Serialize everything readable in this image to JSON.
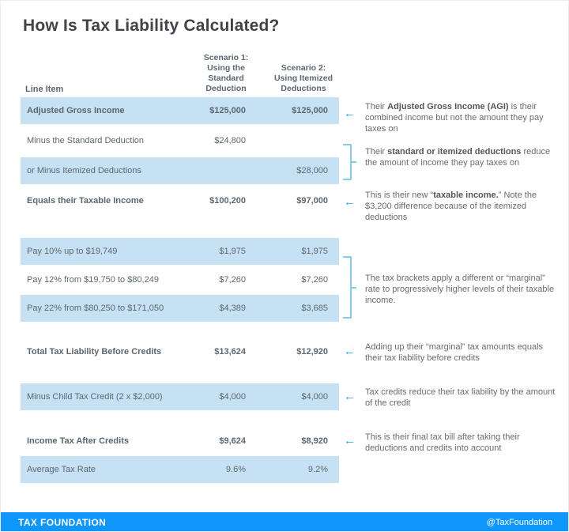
{
  "title": "How Is Tax Liability Calculated?",
  "chart_data": {
    "type": "table",
    "title": "How Is Tax Liability Calculated?",
    "headers": {
      "line_item": "Line Item",
      "scenario1": "Scenario 1:\nUsing the\nStandard\nDeduction",
      "scenario2": "Scenario 2:\nUsing Itemized\nDeductions"
    },
    "rows": [
      {
        "label": "Adjusted Gross Income",
        "s1": "$125,000",
        "s2": "$125,000"
      },
      {
        "label": "Minus the Standard Deduction",
        "s1": "$24,800",
        "s2": ""
      },
      {
        "label": "or Minus Itemized Deductions",
        "s1": "",
        "s2": "$28,000"
      },
      {
        "label": "Equals their Taxable Income",
        "s1": "$100,200",
        "s2": "$97,000"
      },
      {
        "label": "Pay 10% up to $19,749",
        "s1": "$1,975",
        "s2": "$1,975"
      },
      {
        "label": "Pay 12% from $19,750 to $80,249",
        "s1": "$7,260",
        "s2": "$7,260"
      },
      {
        "label": "Pay 22% from $80,250 to $171,050",
        "s1": "$4,389",
        "s2": "$3,685"
      },
      {
        "label": "Total Tax Liability Before Credits",
        "s1": "$13,624",
        "s2": "$12,920"
      },
      {
        "label": "Minus Child Tax Credit (2 x $2,000)",
        "s1": "$4,000",
        "s2": "$4,000"
      },
      {
        "label": "Income Tax After Credits",
        "s1": "$9,624",
        "s2": "$8,920"
      },
      {
        "label": "Average Tax Rate",
        "s1": "9.6%",
        "s2": "9.2%"
      }
    ]
  },
  "annotations": [
    {
      "marker": "arrow",
      "pre": "Their ",
      "bold": "Adjusted Gross Income (AGI)",
      "post": " is their combined income but not the amount they pay taxes on"
    },
    {
      "marker": "bracket",
      "pre": "Their ",
      "bold": "standard or itemized deductions",
      "post": " reduce the amount of income they pay taxes on"
    },
    {
      "marker": "arrow",
      "pre": "This is their new “",
      "bold": "taxable income.",
      "post": "” Note the $3,200 difference because of the itemized deductions"
    },
    {
      "marker": "bracket",
      "pre": "The tax brackets apply a different or “marginal” rate to progressively higher levels of their taxable income.",
      "bold": "",
      "post": ""
    },
    {
      "marker": "arrow",
      "pre": "Adding up their “marginal” tax amounts equals their tax liability before credits",
      "bold": "",
      "post": ""
    },
    {
      "marker": "arrow",
      "pre": "Tax credits reduce their tax liability by the amount of the credit",
      "bold": "",
      "post": ""
    },
    {
      "marker": "arrow",
      "pre": "This is their final tax bill after taking their deductions and credits into account",
      "bold": "",
      "post": ""
    }
  ],
  "icons": {
    "left_arrow": "←"
  },
  "footer": {
    "brand": "TAX FOUNDATION",
    "handle": "@TaxFoundation"
  },
  "colors": {
    "row_highlight": "#c7e1f4",
    "accent_arrow": "#2b9fd9",
    "bracket_blue": "#86cdea",
    "footer_blue": "#0f96fa",
    "text_gray": "#5b6770"
  }
}
